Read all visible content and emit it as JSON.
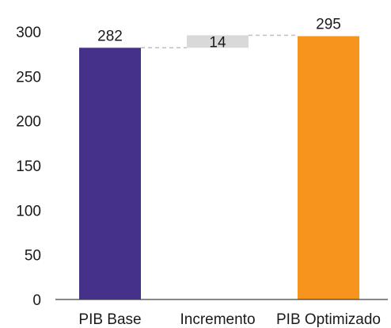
{
  "chart_data": {
    "type": "bar",
    "subtype": "waterfall",
    "categories": [
      "PIB Base",
      "Incremento",
      "PIB Optimizado"
    ],
    "values": [
      282,
      14,
      295
    ],
    "increment_start": 282,
    "data_labels": [
      "282",
      "14",
      "295"
    ],
    "ylim": [
      0,
      300
    ],
    "yticks": [
      0,
      50,
      100,
      150,
      200,
      250,
      300
    ],
    "ytick_labels": [
      "0",
      "50",
      "100",
      "150",
      "200",
      "250",
      "300"
    ],
    "grid": false,
    "legend": "none",
    "colors": {
      "base": "#45308a",
      "increment": "#d9d9d9",
      "total": "#f7941d",
      "connector": "#bfbfbf",
      "axis": "#404040"
    }
  }
}
